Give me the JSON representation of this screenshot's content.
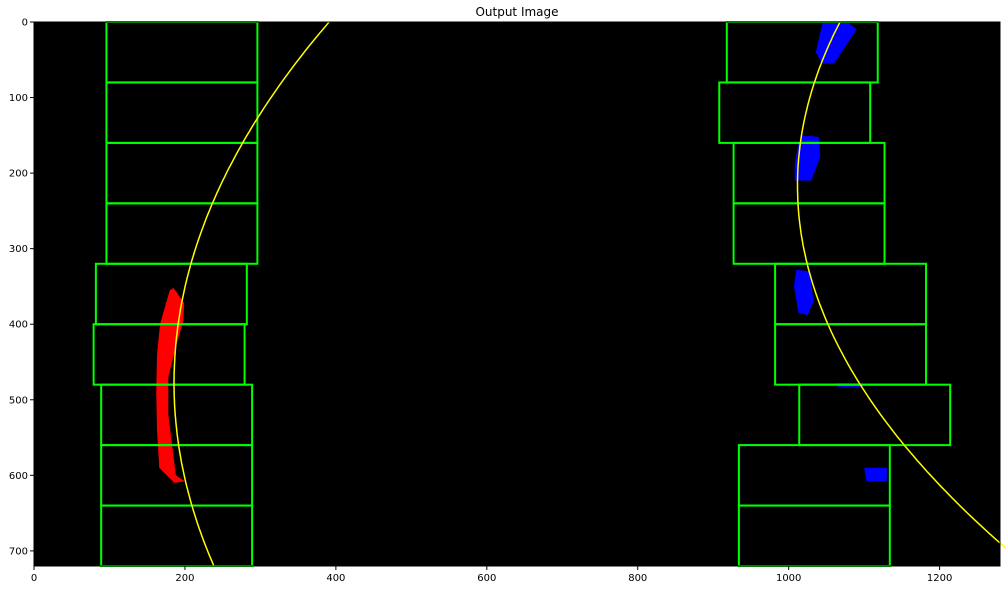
{
  "title": "Output Image",
  "image": {
    "width": 1280,
    "height": 720,
    "background": "#000000"
  },
  "axes": {
    "x_ticks": [
      0,
      200,
      400,
      600,
      800,
      1000,
      1200
    ],
    "y_ticks": [
      0,
      100,
      200,
      300,
      400,
      500,
      600,
      700
    ]
  },
  "colors": {
    "window": "#00ff00",
    "fit": "#ffff00",
    "left_lane": "#ff0000",
    "right_lane": "#0000ff"
  },
  "sliding_windows": {
    "left": [
      [
        96,
        0,
        296,
        80
      ],
      [
        96,
        80,
        296,
        160
      ],
      [
        96,
        160,
        296,
        240
      ],
      [
        96,
        240,
        296,
        320
      ],
      [
        82,
        320,
        282,
        400
      ],
      [
        79,
        400,
        279,
        480
      ],
      [
        89,
        480,
        289,
        560
      ],
      [
        89,
        560,
        289,
        640
      ],
      [
        89,
        640,
        289,
        720
      ]
    ],
    "right": [
      [
        918,
        0,
        1118,
        80
      ],
      [
        908,
        80,
        1108,
        160
      ],
      [
        927,
        160,
        1127,
        240
      ],
      [
        927,
        240,
        1127,
        320
      ],
      [
        982,
        320,
        1182,
        400
      ],
      [
        982,
        400,
        1182,
        480
      ],
      [
        1014,
        480,
        1214,
        560
      ],
      [
        934,
        560,
        1134,
        640
      ],
      [
        934,
        640,
        1134,
        720
      ]
    ]
  },
  "lane_pixels": {
    "left": [
      [
        185,
        352
      ],
      [
        199,
        372
      ],
      [
        198,
        395
      ],
      [
        188,
        430
      ],
      [
        178,
        470
      ],
      [
        178,
        520
      ],
      [
        183,
        560
      ],
      [
        188,
        600
      ],
      [
        200,
        608
      ],
      [
        186,
        610
      ],
      [
        166,
        590
      ],
      [
        163,
        540
      ],
      [
        162,
        490
      ],
      [
        163,
        440
      ],
      [
        167,
        400
      ],
      [
        175,
        372
      ],
      [
        180,
        355
      ]
    ],
    "right_blobs": [
      [
        [
          1045,
          0
        ],
        [
          1078,
          0
        ],
        [
          1090,
          10
        ],
        [
          1060,
          55
        ],
        [
          1044,
          55
        ],
        [
          1036,
          40
        ]
      ],
      [
        [
          1018,
          150
        ],
        [
          1040,
          152
        ],
        [
          1042,
          178
        ],
        [
          1030,
          210
        ],
        [
          1008,
          210
        ],
        [
          1008,
          188
        ],
        [
          1012,
          165
        ]
      ],
      [
        [
          1010,
          328
        ],
        [
          1028,
          330
        ],
        [
          1033,
          370
        ],
        [
          1025,
          388
        ],
        [
          1013,
          385
        ],
        [
          1007,
          350
        ]
      ],
      [
        [
          1100,
          590
        ],
        [
          1130,
          590
        ],
        [
          1130,
          608
        ],
        [
          1103,
          608
        ]
      ],
      [
        [
          1064,
          478
        ],
        [
          1098,
          478
        ],
        [
          1098,
          483
        ],
        [
          1064,
          483
        ]
      ]
    ]
  },
  "fits": {
    "left": {
      "a": 0.0009,
      "b": -0.86,
      "c": 391,
      "y_range": [
        0,
        720
      ]
    },
    "right": {
      "a": 0.0012,
      "b": -0.52,
      "c": 1068,
      "y_range": [
        0,
        720
      ]
    }
  }
}
